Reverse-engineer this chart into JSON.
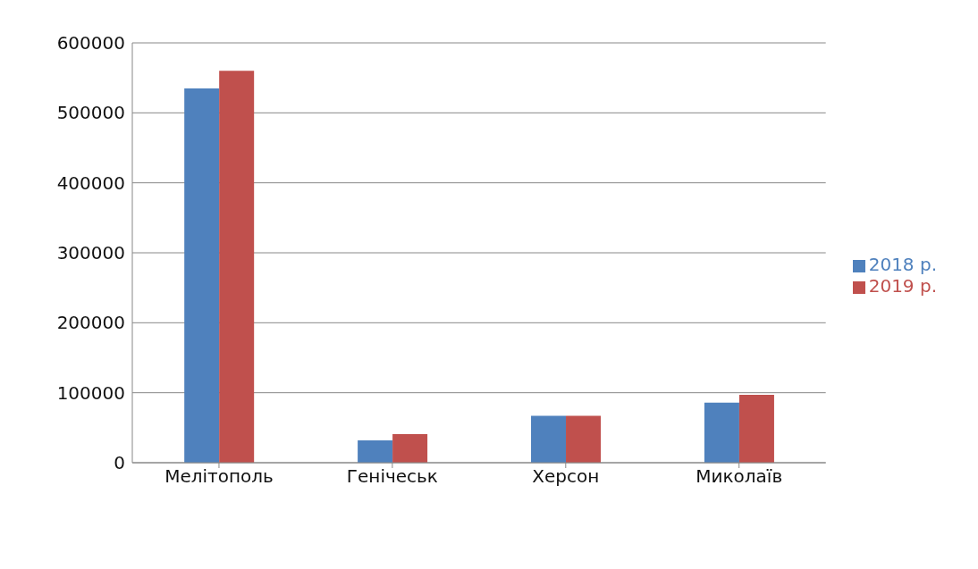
{
  "chart_data": {
    "type": "bar",
    "categories": [
      "Мелітополь",
      "Генічеськ",
      "Херсон",
      "Миколаїв"
    ],
    "series": [
      {
        "name": "2018 р.",
        "color": "#4f81bd",
        "values": [
          535000,
          32000,
          67000,
          86000
        ]
      },
      {
        "name": "2019 р.",
        "color": "#c0504d",
        "values": [
          560000,
          41000,
          67000,
          97000
        ]
      }
    ],
    "ylim": [
      0,
      600000
    ],
    "yticks": [
      0,
      100000,
      200000,
      300000,
      400000,
      500000,
      600000
    ],
    "grid": "y",
    "legend": "right"
  }
}
